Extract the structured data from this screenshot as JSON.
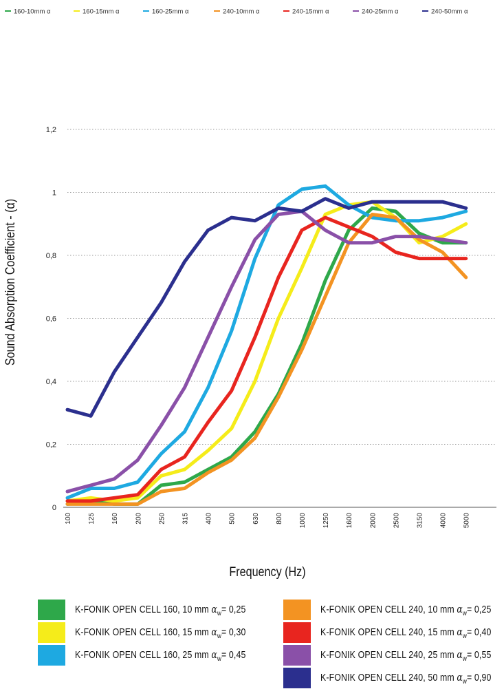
{
  "chart_data": {
    "type": "line",
    "xlabel": "Frequency (Hz)",
    "ylabel": "Sound Absorption Coefficient - (α)",
    "ylim": [
      0,
      1.2
    ],
    "yticks": [
      "0",
      "0,2",
      "0,4",
      "0,6",
      "0,8",
      "1",
      "1,2"
    ],
    "ytick_values": [
      0,
      0.2,
      0.4,
      0.6,
      0.8,
      1.0,
      1.2
    ],
    "categories": [
      "100",
      "125",
      "160",
      "200",
      "250",
      "315",
      "400",
      "500",
      "630",
      "800",
      "1000",
      "1250",
      "1600",
      "2000",
      "2500",
      "3150",
      "4000",
      "5000"
    ],
    "grid": "horizontal dotted",
    "top_legend": [
      "160-10mm α",
      "160-15mm α",
      "160-25mm α",
      "240-10mm α",
      "240-15mm α",
      "240-25mm α",
      "240-50mm α"
    ],
    "series": [
      {
        "name": "K-FONIK OPEN CELL 160, 10 mm",
        "rating": "= 0,25",
        "color": "#2ea84a",
        "values": [
          0.01,
          0.02,
          0.01,
          0.01,
          0.07,
          0.08,
          0.12,
          0.16,
          0.24,
          0.36,
          0.52,
          0.72,
          0.88,
          0.95,
          0.94,
          0.87,
          0.84,
          0.84
        ]
      },
      {
        "name": "K-FONIK OPEN CELL 160, 15 mm",
        "rating": "= 0,30",
        "color": "#f5ec1a",
        "values": [
          0.02,
          0.03,
          0.02,
          0.03,
          0.1,
          0.12,
          0.18,
          0.25,
          0.4,
          0.6,
          0.76,
          0.93,
          0.96,
          0.97,
          0.92,
          0.84,
          0.86,
          0.9
        ]
      },
      {
        "name": "K-FONIK OPEN CELL 160, 25 mm",
        "rating": "= 0,45",
        "color": "#1ea9e1",
        "values": [
          0.03,
          0.06,
          0.06,
          0.08,
          0.17,
          0.24,
          0.38,
          0.56,
          0.79,
          0.96,
          1.01,
          1.02,
          0.96,
          0.92,
          0.91,
          0.91,
          0.92,
          0.94
        ]
      },
      {
        "name": "K-FONIK OPEN CELL 240, 10 mm",
        "rating": "= 0,25",
        "color": "#f39322",
        "values": [
          0.01,
          0.01,
          0.01,
          0.01,
          0.05,
          0.06,
          0.11,
          0.15,
          0.22,
          0.35,
          0.5,
          0.67,
          0.84,
          0.93,
          0.92,
          0.85,
          0.81,
          0.73
        ]
      },
      {
        "name": "K-FONIK OPEN CELL 240, 15 mm",
        "rating": "= 0,40",
        "color": "#e8251f",
        "values": [
          0.02,
          0.02,
          0.03,
          0.04,
          0.12,
          0.16,
          0.27,
          0.37,
          0.54,
          0.73,
          0.88,
          0.92,
          0.89,
          0.86,
          0.81,
          0.79,
          0.79,
          0.79
        ]
      },
      {
        "name": "K-FONIK OPEN CELL 240, 25 mm",
        "rating": "= 0,55",
        "color": "#8a50a8",
        "values": [
          0.05,
          0.07,
          0.09,
          0.15,
          0.26,
          0.38,
          0.54,
          0.7,
          0.85,
          0.93,
          0.94,
          0.88,
          0.84,
          0.84,
          0.86,
          0.86,
          0.85,
          0.84
        ]
      },
      {
        "name": "K-FONIK OPEN CELL 240, 50 mm",
        "rating": "= 0,90",
        "color": "#2b2f8e",
        "values": [
          0.31,
          0.29,
          0.43,
          0.54,
          0.65,
          0.78,
          0.88,
          0.92,
          0.91,
          0.95,
          0.94,
          0.98,
          0.95,
          0.97,
          0.97,
          0.97,
          0.97,
          0.95
        ]
      }
    ]
  }
}
